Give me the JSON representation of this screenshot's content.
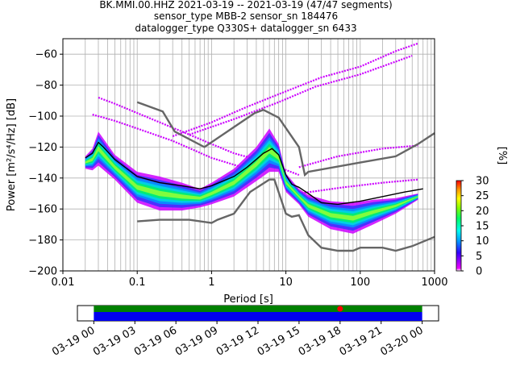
{
  "title": {
    "line1": "BK.MMI.00.HHZ   2021-03-19 -- 2021-03-19  (47/47 segments)",
    "line2": "sensor_type MBB-2 sensor_sn 184476",
    "line3": "datalogger_type Q330S+ datalogger_sn 6433"
  },
  "chart_data": [
    {
      "type": "heatmap",
      "subtype": "probabilistic-power-spectral-density",
      "xlabel": "Period [s]",
      "ylabel": "Power [m²/s⁴/Hz] [dB]",
      "x_scale": "log",
      "xlim": [
        0.01,
        1000
      ],
      "ylim": [
        -200,
        -50
      ],
      "x_ticks": [
        {
          "value": 0.01,
          "label": "0.01"
        },
        {
          "value": 0.1,
          "label": "0.1"
        },
        {
          "value": 1,
          "label": "1"
        },
        {
          "value": 10,
          "label": "10"
        },
        {
          "value": 100,
          "label": "100"
        },
        {
          "value": 1000,
          "label": "1000"
        }
      ],
      "y_ticks": [
        {
          "value": -60,
          "label": "−60"
        },
        {
          "value": -80,
          "label": "−80"
        },
        {
          "value": -100,
          "label": "−100"
        },
        {
          "value": -120,
          "label": "−120"
        },
        {
          "value": -140,
          "label": "−140"
        },
        {
          "value": -160,
          "label": "−160"
        },
        {
          "value": -180,
          "label": "−180"
        },
        {
          "value": -200,
          "label": "−200"
        }
      ],
      "grid": true,
      "colorbar": {
        "label": "[%]",
        "range": [
          0,
          30
        ],
        "ticks": [
          {
            "value": 0,
            "label": "0"
          },
          {
            "value": 5,
            "label": "5"
          },
          {
            "value": 10,
            "label": "10"
          },
          {
            "value": 15,
            "label": "15"
          },
          {
            "value": 20,
            "label": "20"
          },
          {
            "value": 25,
            "label": "25"
          },
          {
            "value": 30,
            "label": "30"
          }
        ]
      },
      "series": [
        {
          "role": "mean",
          "color": "#000000",
          "points": [
            [
              0.02,
              -127
            ],
            [
              0.025,
              -124
            ],
            [
              0.03,
              -117
            ],
            [
              0.035,
              -120
            ],
            [
              0.05,
              -128
            ],
            [
              0.1,
              -139
            ],
            [
              0.2,
              -143
            ],
            [
              0.4,
              -145
            ],
            [
              0.7,
              -147
            ],
            [
              1,
              -145
            ],
            [
              2,
              -139
            ],
            [
              3,
              -133
            ],
            [
              5,
              -124
            ],
            [
              6.5,
              -121
            ],
            [
              8,
              -125
            ],
            [
              10,
              -138
            ],
            [
              12,
              -144
            ],
            [
              15,
              -146
            ],
            [
              20,
              -150
            ],
            [
              30,
              -156
            ],
            [
              50,
              -157
            ],
            [
              70,
              -156
            ],
            [
              100,
              -155
            ],
            [
              200,
              -152
            ],
            [
              400,
              -149
            ],
            [
              700,
              -147
            ]
          ]
        },
        {
          "role": "reference-upper",
          "color": "#666666",
          "points": [
            [
              0.1,
              -91
            ],
            [
              0.22,
              -97
            ],
            [
              0.32,
              -110
            ],
            [
              0.8,
              -120
            ],
            [
              3.8,
              -98
            ],
            [
              5,
              -96
            ],
            [
              8,
              -101
            ],
            [
              15,
              -120
            ],
            [
              18,
              -138
            ],
            [
              20,
              -136
            ],
            [
              100,
              -130
            ],
            [
              300,
              -126
            ],
            [
              600,
              -118
            ],
            [
              1000,
              -111
            ]
          ]
        },
        {
          "role": "reference-lower",
          "color": "#666666",
          "points": [
            [
              0.1,
              -168
            ],
            [
              0.2,
              -167
            ],
            [
              0.5,
              -167
            ],
            [
              1,
              -169
            ],
            [
              1.2,
              -167
            ],
            [
              2,
              -163
            ],
            [
              3.3,
              -149
            ],
            [
              6,
              -141
            ],
            [
              7,
              -141
            ],
            [
              10,
              -163
            ],
            [
              12,
              -165
            ],
            [
              15,
              -164
            ],
            [
              20,
              -177
            ],
            [
              30,
              -185
            ],
            [
              50,
              -187
            ],
            [
              80,
              -187
            ],
            [
              100,
              -185
            ],
            [
              200,
              -185
            ],
            [
              300,
              -187
            ],
            [
              500,
              -184
            ],
            [
              1000,
              -178
            ]
          ]
        },
        {
          "role": "density-band",
          "colormap": "pqlx",
          "description_points": [
            [
              0.02,
              -130,
              8
            ],
            [
              0.025,
              -128,
              14
            ],
            [
              0.03,
              -121,
              22
            ],
            [
              0.05,
              -133,
              16
            ],
            [
              0.1,
              -146,
              20
            ],
            [
              0.2,
              -150,
              22
            ],
            [
              0.4,
              -152,
              18
            ],
            [
              0.7,
              -153,
              12
            ],
            [
              1,
              -150,
              14
            ],
            [
              2,
              -143,
              18
            ],
            [
              4,
              -131,
              22
            ],
            [
              6,
              -122,
              28
            ],
            [
              8,
              -127,
              18
            ],
            [
              10,
              -143,
              12
            ],
            [
              15,
              -152,
              10
            ],
            [
              20,
              -158,
              14
            ],
            [
              40,
              -164,
              18
            ],
            [
              80,
              -166,
              20
            ],
            [
              150,
              -162,
              16
            ],
            [
              300,
              -158,
              10
            ],
            [
              600,
              -152,
              4
            ]
          ]
        },
        {
          "role": "outlier-bands",
          "color": "#cc00ff",
          "points_sets": [
            [
              [
                0.03,
                -88
              ],
              [
                0.05,
                -92
              ],
              [
                0.1,
                -98
              ],
              [
                0.2,
                -104
              ],
              [
                0.4,
                -110
              ],
              [
                1,
                -118
              ],
              [
                2,
                -124
              ],
              [
                4,
                -128
              ],
              [
                8,
                -133
              ],
              [
                15,
                -138
              ]
            ],
            [
              [
                0.025,
                -99
              ],
              [
                0.05,
                -103
              ],
              [
                0.1,
                -108
              ],
              [
                0.3,
                -116
              ],
              [
                1,
                -127
              ],
              [
                3,
                -134
              ]
            ],
            [
              [
                0.3,
                -113
              ],
              [
                1,
                -104
              ],
              [
                3,
                -94
              ],
              [
                10,
                -84
              ],
              [
                30,
                -75
              ],
              [
                100,
                -68
              ],
              [
                300,
                -58
              ],
              [
                600,
                -53
              ]
            ],
            [
              [
                0.5,
                -112
              ],
              [
                2,
                -102
              ],
              [
                8,
                -91
              ],
              [
                25,
                -81
              ],
              [
                100,
                -73
              ],
              [
                500,
                -61
              ]
            ],
            [
              [
                15,
                -133
              ],
              [
                50,
                -126
              ],
              [
                200,
                -121
              ],
              [
                600,
                -119
              ]
            ],
            [
              [
                15,
                -150
              ],
              [
                60,
                -146
              ],
              [
                200,
                -143
              ],
              [
                600,
                -141
              ]
            ]
          ]
        }
      ]
    },
    {
      "type": "timeline",
      "subtype": "data-coverage",
      "x_ticks": [
        {
          "label": "03-19 00"
        },
        {
          "label": "03-19 03"
        },
        {
          "label": "03-19 06"
        },
        {
          "label": "03-19 09"
        },
        {
          "label": "03-19 12"
        },
        {
          "label": "03-19 15"
        },
        {
          "label": "03-19 18"
        },
        {
          "label": "03-19 21"
        },
        {
          "label": "03-20 00"
        }
      ],
      "coverage_start_hour": 0,
      "coverage_end_hour": 24,
      "axis_start_hour": -1.2,
      "axis_end_hour": 25.2,
      "marker_hour": 18,
      "colors": {
        "used": "#0000ee",
        "available": "#008000",
        "marker": "#ff0000"
      }
    }
  ]
}
